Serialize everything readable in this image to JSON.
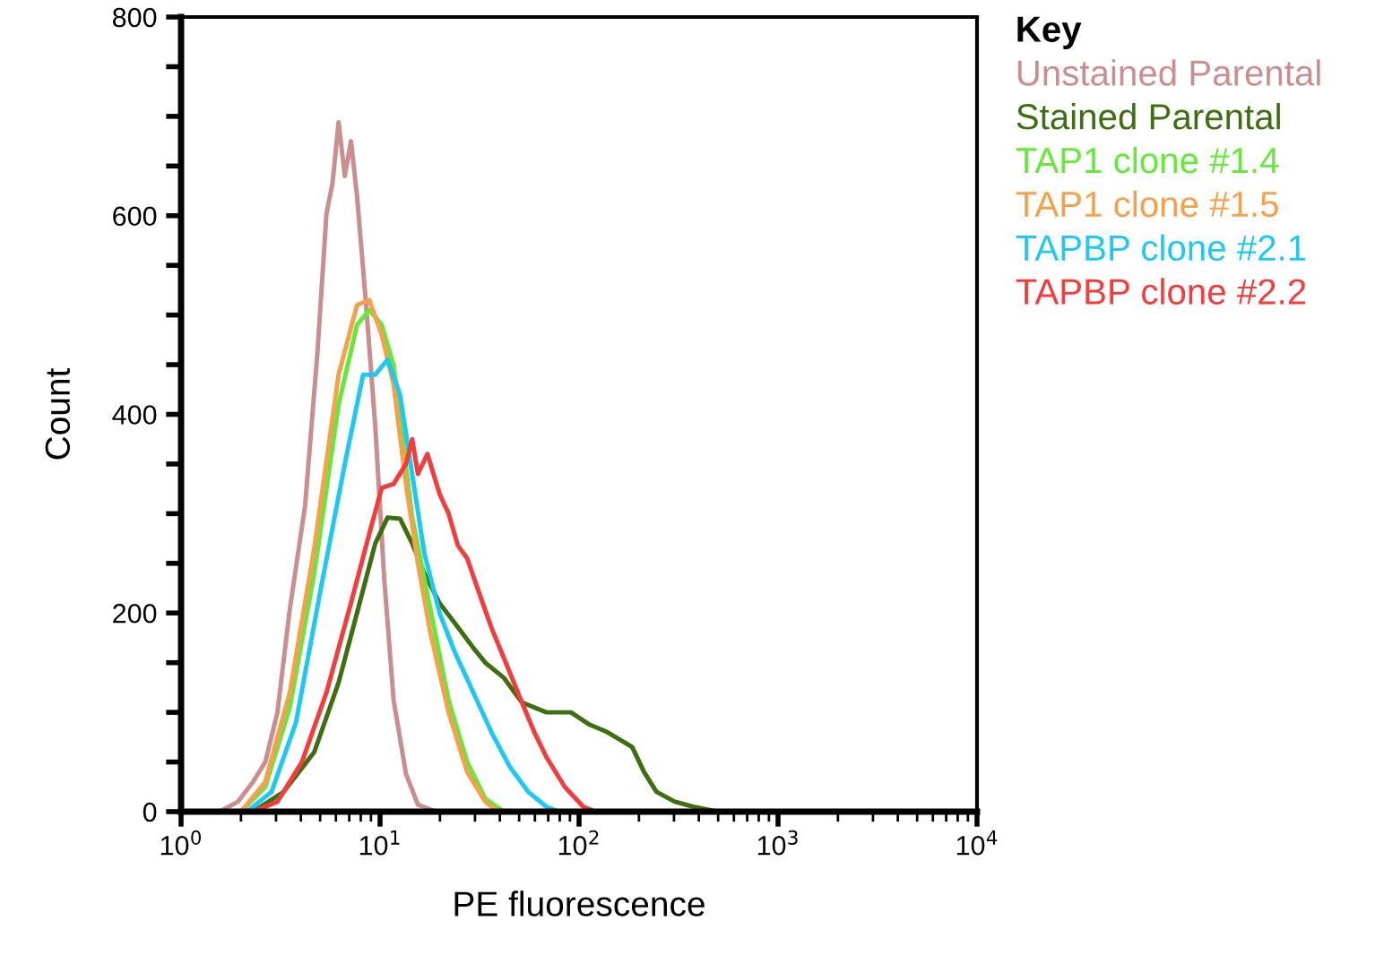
{
  "chart_data": {
    "type": "line",
    "xlabel": "PE fluorescence",
    "ylabel": "Count",
    "legend_title": "Key",
    "legend": "right",
    "log": "x",
    "grid": false,
    "marker": "none",
    "line_style": "solid",
    "xlim": [
      1,
      10000
    ],
    "ylim": [
      0,
      800
    ],
    "xticks": [
      {
        "value": 1,
        "label": "10$^{0}$"
      },
      {
        "value": 10,
        "label": "10$^{1}$"
      },
      {
        "value": 100,
        "label": "10$^{2}$"
      },
      {
        "value": 1000,
        "label": "10$^{3}$"
      },
      {
        "value": 10000,
        "label": "10$^{4}$"
      }
    ],
    "yticks": [
      0,
      {
        "value": 50,
        "label": null
      },
      {
        "value": 100,
        "label": null
      },
      {
        "value": 150,
        "label": null
      },
      200,
      {
        "value": 250,
        "label": null
      },
      {
        "value": 300,
        "label": null
      },
      {
        "value": 350,
        "label": null
      },
      400,
      {
        "value": 450,
        "label": null
      },
      {
        "value": 500,
        "label": null
      },
      {
        "value": 550,
        "label": null
      },
      600,
      {
        "value": 650,
        "label": null
      },
      {
        "value": 700,
        "label": null
      },
      {
        "value": 750,
        "label": null
      },
      800
    ],
    "series": [
      {
        "name": "Unstained Parental",
        "color": "#c98f8f",
        "x": [
          1,
          1.56,
          1.93,
          2.3,
          2.65,
          3.05,
          3.52,
          4.2,
          4.84,
          5.38,
          5.77,
          6.19,
          6.65,
          7.14,
          7.66,
          8.51,
          9.46,
          10.5,
          11.7,
          13.5,
          15.5,
          19.2,
          10000
        ],
        "values": [
          0,
          0,
          10,
          30,
          50,
          100,
          204,
          308,
          461,
          602,
          633,
          694,
          640,
          675,
          620,
          510,
          388,
          234,
          112,
          38,
          7,
          0,
          0
        ]
      },
      {
        "name": "Stained Parental",
        "color": "#3d6e10",
        "x": [
          1,
          2.3,
          3.28,
          4.67,
          6.19,
          7.66,
          9.46,
          10.9,
          12.6,
          14.5,
          16.7,
          19.9,
          23.7,
          29.4,
          33.8,
          41.8,
          51.6,
          68.5,
          91.0,
          112,
          139,
          185,
          212,
          245,
          303,
          374,
          497,
          10000
        ],
        "values": [
          0,
          0,
          20,
          60,
          130,
          200,
          270,
          296,
          295,
          270,
          240,
          210,
          190,
          165,
          150,
          135,
          110,
          100,
          100,
          88,
          80,
          65,
          40,
          20,
          10,
          5,
          0,
          0
        ]
      },
      {
        "name": "TAP1 clone #1.4",
        "color": "#66e83a",
        "x": [
          1,
          2.0,
          2.65,
          3.52,
          4.67,
          6.19,
          7.66,
          8.83,
          10.2,
          11.7,
          14.5,
          17.9,
          22.1,
          27.4,
          33.8,
          41.8,
          10000
        ],
        "values": [
          0,
          0,
          25,
          105,
          240,
          410,
          490,
          505,
          490,
          449,
          296,
          204,
          112,
          50,
          13,
          0,
          0
        ]
      },
      {
        "name": "TAP1 clone #1.5",
        "color": "#f5a04a",
        "x": [
          1,
          2.0,
          2.65,
          3.52,
          4.67,
          6.19,
          7.66,
          8.83,
          10.2,
          11.7,
          13.5,
          15.5,
          17.9,
          22.1,
          27.4,
          33.8,
          38.9,
          10000
        ],
        "values": [
          0,
          0,
          30,
          120,
          265,
          440,
          510,
          515,
          480,
          430,
          330,
          250,
          180,
          100,
          40,
          10,
          0,
          0
        ]
      },
      {
        "name": "TAPBP clone #2.1",
        "color": "#1ec8f5",
        "x": [
          1,
          2.15,
          2.85,
          3.78,
          5.01,
          6.65,
          8.22,
          9.46,
          10.9,
          12.6,
          14.5,
          16.7,
          19.9,
          23.7,
          29.4,
          36.3,
          44.9,
          55.5,
          68.5,
          78.9,
          10000
        ],
        "values": [
          0,
          0,
          20,
          90,
          222,
          350,
          440,
          440,
          455,
          420,
          340,
          260,
          200,
          161,
          120,
          80,
          45,
          20,
          5,
          0,
          0
        ]
      },
      {
        "name": "TAPBP clone #2.2",
        "color": "#f53c3c",
        "x": [
          1,
          2.3,
          3.05,
          4.05,
          5.38,
          7.14,
          8.83,
          10.2,
          11.7,
          13.5,
          14.5,
          15.5,
          17.3,
          19.9,
          22.1,
          24.6,
          27.4,
          31.5,
          36.3,
          44.9,
          51.6,
          59.6,
          68.5,
          84.7,
          105,
          121,
          10000
        ],
        "values": [
          0,
          0,
          10,
          50,
          120,
          210,
          280,
          326,
          330,
          350,
          375,
          340,
          360,
          320,
          300,
          268,
          255,
          220,
          185,
          140,
          110,
          80,
          55,
          25,
          5,
          0,
          0
        ]
      }
    ]
  }
}
